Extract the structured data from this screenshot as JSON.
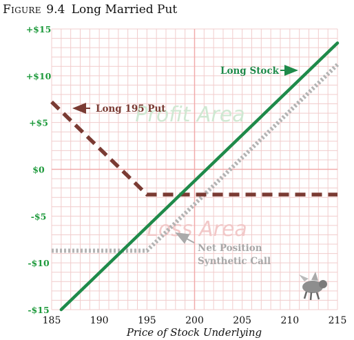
{
  "figure": {
    "label": "Figure",
    "number": "9.4",
    "name": "Long Married Put"
  },
  "colors": {
    "long_stock": "#1f8a4a",
    "long_put": "#7a3b33",
    "net_position": "#b4b4b4",
    "profit_area_text": "#cfe8d2",
    "loss_area_text": "#f2c8c8",
    "grid": "#f1cccc",
    "axis": "#f1aaaa",
    "ytick": "#1e9a3c"
  },
  "chart_data": {
    "type": "line",
    "title": "Long Married Put",
    "xlabel": "Price of Stock Underlying",
    "ylabel": "",
    "xlim": [
      185,
      215
    ],
    "ylim": [
      -15,
      15
    ],
    "x_ticks": [
      185,
      190,
      195,
      200,
      205,
      210,
      215
    ],
    "y_ticks": [
      15,
      10,
      5,
      0,
      -5,
      -10,
      -15
    ],
    "y_tick_labels": [
      "+$15",
      "+$10",
      "+$5",
      "$0",
      "-$5",
      "-$10",
      "-$15"
    ],
    "grid": true,
    "area_labels": {
      "profit": "Profit Area",
      "loss": "Loss Area"
    },
    "series": [
      {
        "name": "Long Stock",
        "style": "solid",
        "points": [
          [
            186,
            -15
          ],
          [
            215,
            13.5
          ]
        ]
      },
      {
        "name": "Long 195 Put",
        "style": "dashed",
        "points": [
          [
            185,
            7.2
          ],
          [
            195,
            -2.7
          ],
          [
            215,
            -2.7
          ]
        ]
      },
      {
        "name": "Net Position",
        "label_lines": [
          "Net Position",
          "Synthetic Call"
        ],
        "style": "dotted",
        "points": [
          [
            185,
            -8.7
          ],
          [
            195,
            -8.7
          ],
          [
            215,
            11.2
          ]
        ]
      }
    ]
  }
}
